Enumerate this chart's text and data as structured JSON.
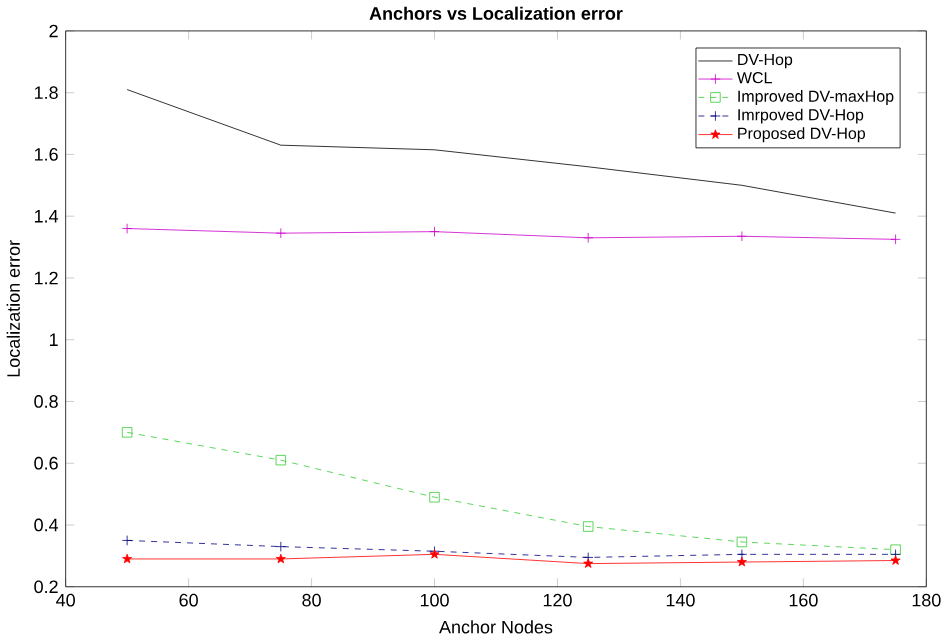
{
  "chart_data": {
    "type": "line",
    "title": "Anchors vs Localization error",
    "xlabel": "Anchor Nodes",
    "ylabel": "Localization error",
    "x": [
      50,
      75,
      100,
      125,
      150,
      175
    ],
    "series": [
      {
        "name": "DV-Hop",
        "color": "#000000",
        "marker": "none",
        "line_style": "solid",
        "values": [
          1.81,
          1.63,
          1.615,
          1.56,
          1.5,
          1.41
        ]
      },
      {
        "name": "WCL",
        "color": "#cc00cc",
        "marker": "cross",
        "line_style": "solid",
        "values": [
          1.36,
          1.345,
          1.35,
          1.33,
          1.335,
          1.325
        ]
      },
      {
        "name": "Improved DV-maxHop",
        "color": "#33cc33",
        "marker": "square",
        "line_style": "dashed",
        "values": [
          0.7,
          0.61,
          0.49,
          0.395,
          0.345,
          0.32
        ]
      },
      {
        "name": "Imrpoved DV-Hop",
        "color": "#000080",
        "marker": "cross",
        "line_style": "dashed",
        "values": [
          0.35,
          0.33,
          0.315,
          0.295,
          0.305,
          0.305
        ]
      },
      {
        "name": "Proposed DV-Hop",
        "color": "#ff0000",
        "marker": "star",
        "line_style": "solid",
        "values": [
          0.29,
          0.29,
          0.305,
          0.275,
          0.28,
          0.285
        ]
      }
    ],
    "xlim": [
      40,
      180
    ],
    "xticks": [
      40,
      60,
      80,
      100,
      120,
      140,
      160,
      180
    ],
    "ylim": [
      0.2,
      2
    ],
    "yticks": [
      0.2,
      0.4,
      0.6,
      0.8,
      1,
      1.2,
      1.4,
      1.6,
      1.8,
      2
    ],
    "grid": false,
    "legend": "top right"
  }
}
